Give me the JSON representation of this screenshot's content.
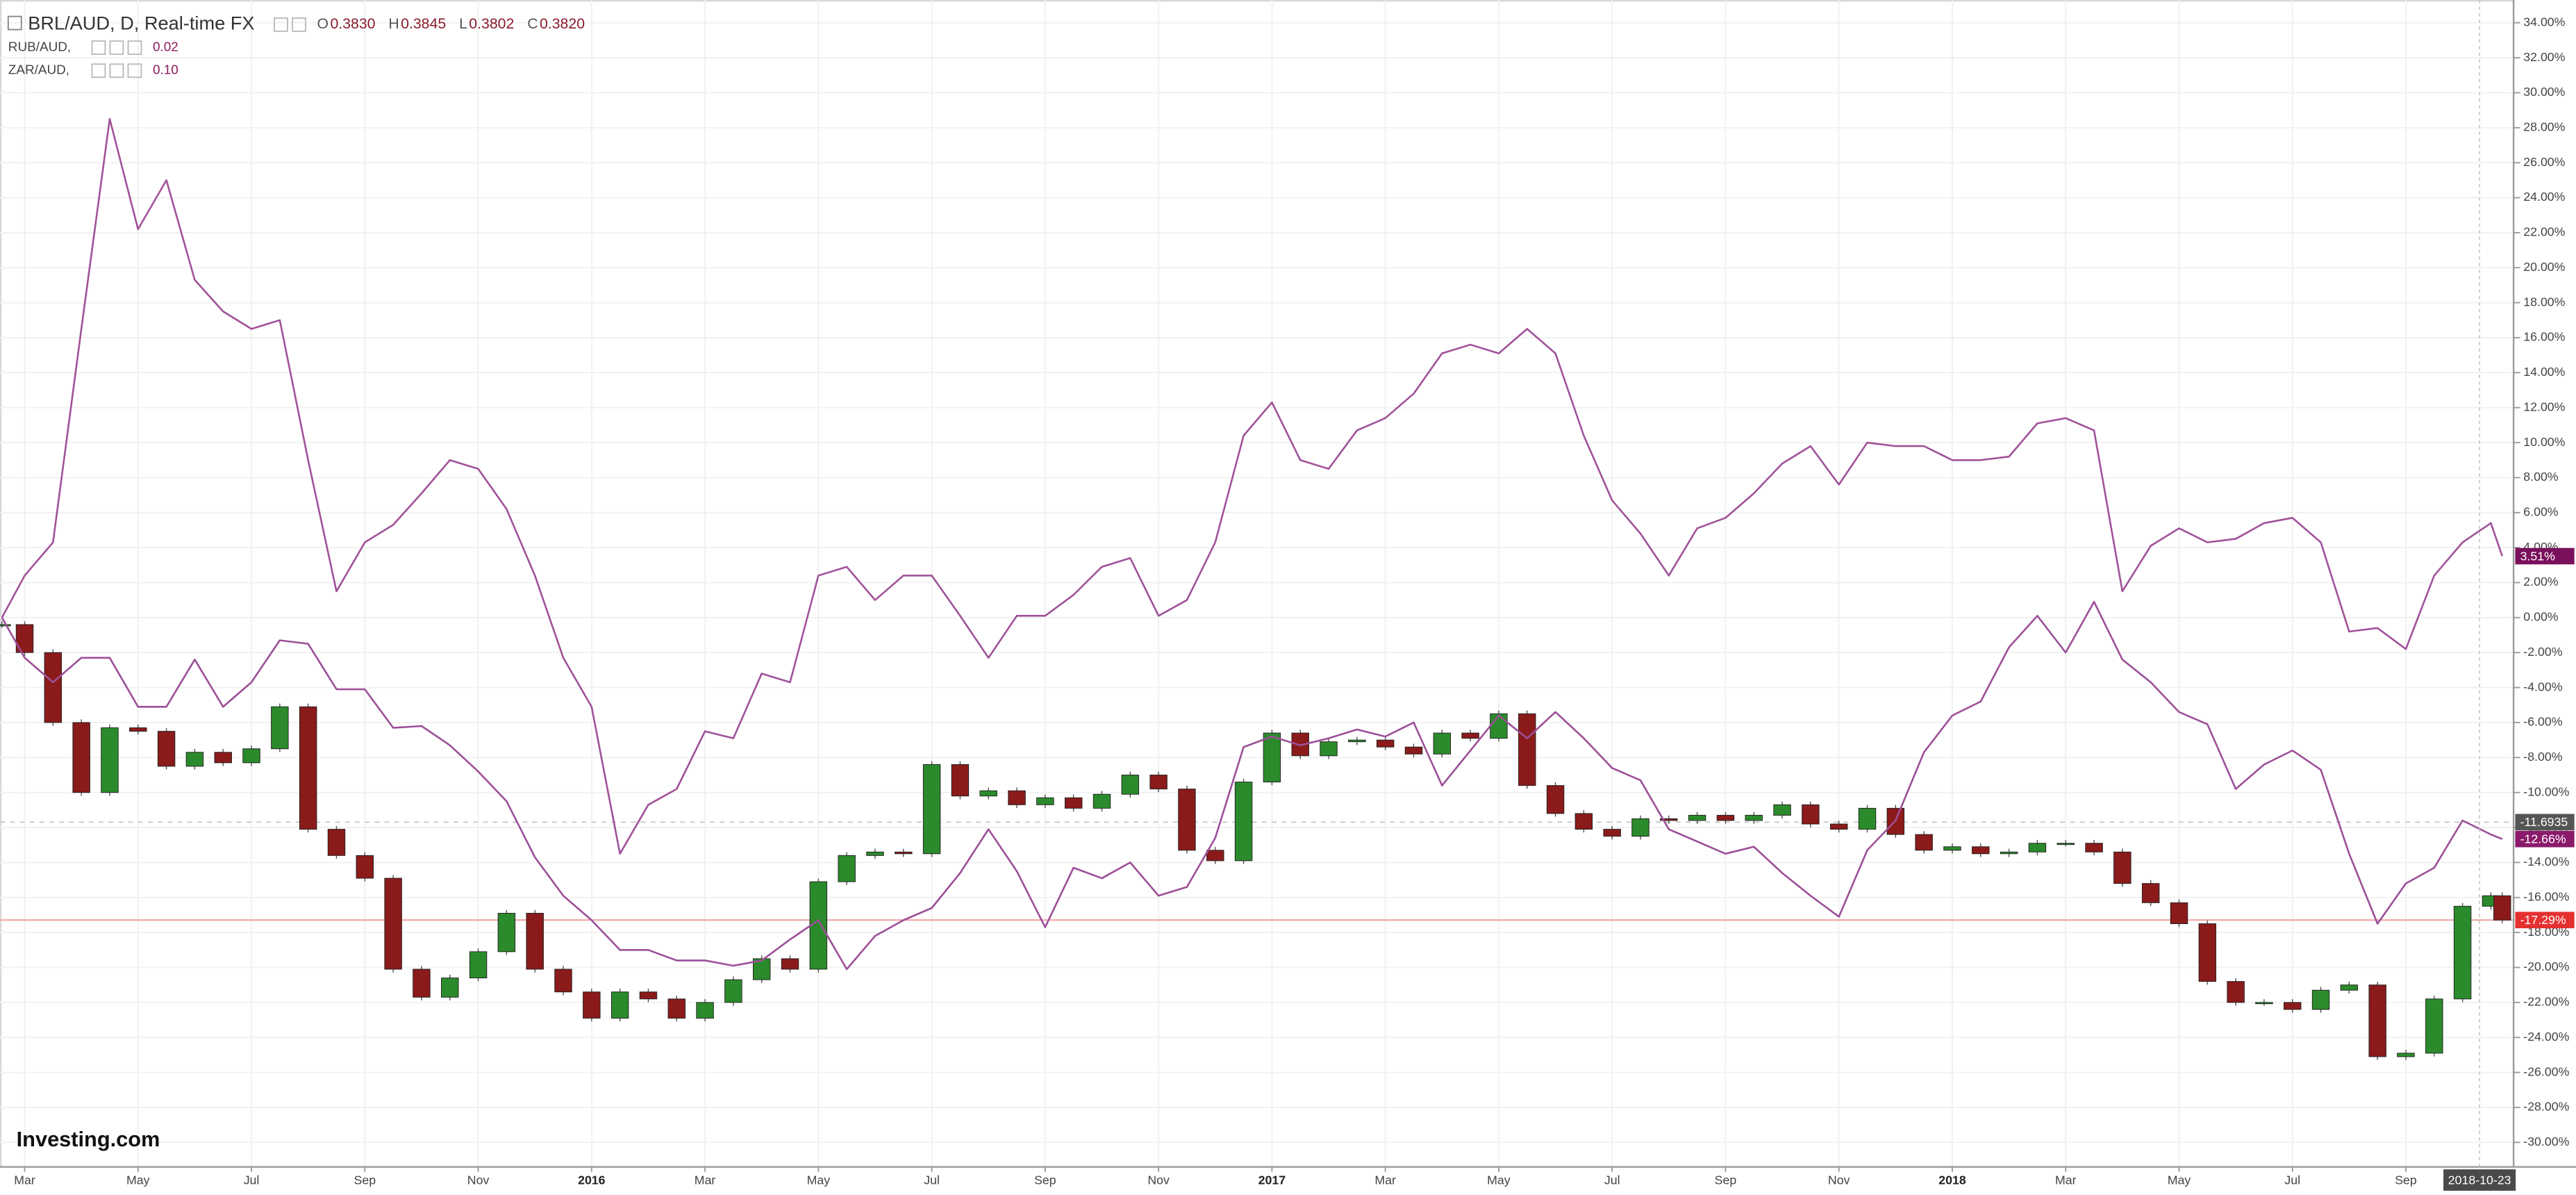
{
  "chart_data": {
    "type": "line",
    "title": "BRL/AUD, D, Real-time FX",
    "ohlc": [
      {
        "key": "O",
        "value": "0.3830"
      },
      {
        "key": "H",
        "value": "0.3845"
      },
      {
        "key": "L",
        "value": "0.3802"
      },
      {
        "key": "C",
        "value": "0.3820"
      }
    ],
    "source": "Investing.com",
    "grid": true,
    "xlim": [
      -0.435,
      43.9
    ],
    "ylim": [
      -31.4,
      35.3
    ],
    "xticks": [
      {
        "value": 0,
        "label": "Mar"
      },
      {
        "value": 2,
        "label": "May"
      },
      {
        "value": 4,
        "label": "Jul"
      },
      {
        "value": 6,
        "label": "Sep"
      },
      {
        "value": 8,
        "label": "Nov"
      },
      {
        "value": 10,
        "label": "2016"
      },
      {
        "value": 12,
        "label": "Mar"
      },
      {
        "value": 14,
        "label": "May"
      },
      {
        "value": 16,
        "label": "Jul"
      },
      {
        "value": 18,
        "label": "Sep"
      },
      {
        "value": 20,
        "label": "Nov"
      },
      {
        "value": 22,
        "label": "2017"
      },
      {
        "value": 24,
        "label": "Mar"
      },
      {
        "value": 26,
        "label": "May"
      },
      {
        "value": 28,
        "label": "Jul"
      },
      {
        "value": 30,
        "label": "Sep"
      },
      {
        "value": 32,
        "label": "Nov"
      },
      {
        "value": 34,
        "label": "2018"
      },
      {
        "value": 36,
        "label": "Mar"
      },
      {
        "value": 38,
        "label": "May"
      },
      {
        "value": 40,
        "label": "Jul"
      },
      {
        "value": 42,
        "label": "Sep"
      }
    ],
    "x_cursor": {
      "value": 43.3,
      "label": "2018-10-23"
    },
    "yticks": [
      {
        "value": 34,
        "label": "34.00%"
      },
      {
        "value": 32,
        "label": "32.00%"
      },
      {
        "value": 30,
        "label": "30.00%"
      },
      {
        "value": 28,
        "label": "28.00%"
      },
      {
        "value": 26,
        "label": "26.00%"
      },
      {
        "value": 24,
        "label": "24.00%"
      },
      {
        "value": 22,
        "label": "22.00%"
      },
      {
        "value": 20,
        "label": "20.00%"
      },
      {
        "value": 18,
        "label": "18.00%"
      },
      {
        "value": 16,
        "label": "16.00%"
      },
      {
        "value": 14,
        "label": "14.00%"
      },
      {
        "value": 12,
        "label": "12.00%"
      },
      {
        "value": 10,
        "label": "10.00%"
      },
      {
        "value": 8,
        "label": "8.00%"
      },
      {
        "value": 6,
        "label": "6.00%"
      },
      {
        "value": 4,
        "label": "4.00%"
      },
      {
        "value": 2,
        "label": "2.00%"
      },
      {
        "value": 0,
        "label": "0.00%"
      },
      {
        "value": -2,
        "label": "-2.00%"
      },
      {
        "value": -4,
        "label": "-4.00%"
      },
      {
        "value": -6,
        "label": "-6.00%"
      },
      {
        "value": -8,
        "label": "-8.00%"
      },
      {
        "value": -10,
        "label": "-10.00%"
      },
      {
        "value": -12,
        "label": "-12.00%"
      },
      {
        "value": -14,
        "label": "-14.00%"
      },
      {
        "value": -16,
        "label": "-16.00%"
      },
      {
        "value": -18,
        "label": "-18.00%"
      },
      {
        "value": -20,
        "label": "-20.00%"
      },
      {
        "value": -22,
        "label": "-22.00%"
      },
      {
        "value": -24,
        "label": "-24.00%"
      },
      {
        "value": -26,
        "label": "-26.00%"
      },
      {
        "value": -28,
        "label": "-28.00%"
      },
      {
        "value": -30,
        "label": "-30.00%"
      }
    ],
    "x": [
      -0.4,
      0,
      0.5,
      1,
      1.5,
      2,
      2.5,
      3,
      3.5,
      4,
      4.5,
      5,
      5.5,
      6,
      6.5,
      7,
      7.5,
      8,
      8.5,
      9,
      9.5,
      10,
      10.5,
      11,
      11.5,
      12,
      12.5,
      13,
      13.5,
      14,
      14.5,
      15,
      15.5,
      16,
      16.5,
      17,
      17.5,
      18,
      18.5,
      19,
      19.5,
      20,
      20.5,
      21,
      21.5,
      22,
      22.5,
      23,
      23.5,
      24,
      24.5,
      25,
      25.5,
      26,
      26.5,
      27,
      27.5,
      28,
      28.5,
      29,
      29.5,
      30,
      30.5,
      31,
      31.5,
      32,
      32.5,
      33,
      33.5,
      34,
      34.5,
      35,
      35.5,
      36,
      36.5,
      37,
      37.5,
      38,
      38.5,
      39,
      39.5,
      40,
      40.5,
      41,
      41.5,
      42,
      42.5,
      43,
      43.5,
      43.7
    ],
    "series": [
      {
        "name": "BRL/AUD",
        "style": "candle",
        "color": "#2b8a2b",
        "down_color": "#8b1a1a",
        "values": [
          -0.4,
          -2.0,
          -6.0,
          -10.0,
          -6.3,
          -6.5,
          -8.5,
          -7.7,
          -8.3,
          -7.5,
          -5.1,
          -12.1,
          -13.6,
          -14.9,
          -20.1,
          -21.7,
          -20.6,
          -19.1,
          -16.9,
          -20.1,
          -21.4,
          -22.9,
          -21.4,
          -21.8,
          -22.9,
          -22.0,
          -20.7,
          -19.5,
          -20.1,
          -15.1,
          -13.6,
          -13.4,
          -13.5,
          -8.4,
          -10.2,
          -9.9,
          -10.7,
          -10.3,
          -10.9,
          -10.1,
          -9.0,
          -9.8,
          -13.3,
          -13.9,
          -9.4,
          -6.6,
          -7.9,
          -7.1,
          -7.0,
          -7.4,
          -7.8,
          -6.6,
          -6.9,
          -5.5,
          -9.6,
          -11.2,
          -12.1,
          -12.5,
          -11.5,
          -11.6,
          -11.3,
          -11.6,
          -11.3,
          -10.7,
          -11.8,
          -12.1,
          -10.9,
          -12.4,
          -13.3,
          -13.1,
          -13.5,
          -13.4,
          -12.9,
          -12.9,
          -13.4,
          -15.2,
          -16.3,
          -17.5,
          -20.8,
          -22.0,
          -22.0,
          -22.4,
          -21.3,
          -21.0,
          -25.1,
          -24.9,
          -21.8,
          -16.5,
          -15.9,
          -17.29
        ]
      },
      {
        "name": "RUB/AUD,",
        "legend_value": "0.02",
        "color": "#a0529a",
        "values": [
          0.0,
          2.4,
          4.3,
          16.5,
          28.5,
          22.2,
          25.0,
          19.3,
          17.5,
          16.5,
          17.0,
          9.0,
          1.5,
          4.3,
          5.3,
          7.1,
          9.0,
          8.5,
          6.2,
          2.4,
          -2.3,
          -5.1,
          -13.5,
          -10.7,
          -9.8,
          -6.5,
          -6.9,
          -3.2,
          -3.7,
          2.4,
          2.9,
          1.0,
          2.4,
          2.4,
          0.1,
          -2.3,
          0.1,
          0.1,
          1.3,
          2.9,
          3.4,
          0.1,
          1.0,
          4.3,
          10.4,
          12.3,
          9.0,
          8.5,
          10.7,
          11.4,
          12.8,
          15.1,
          15.6,
          15.1,
          16.5,
          15.1,
          10.4,
          6.7,
          4.8,
          2.4,
          5.1,
          5.7,
          7.1,
          8.8,
          9.8,
          7.6,
          10.0,
          9.8,
          9.8,
          9.0,
          9.0,
          9.2,
          11.1,
          11.4,
          10.7,
          1.5,
          4.1,
          5.1,
          4.3,
          4.5,
          5.4,
          5.7,
          4.3,
          -0.8,
          -0.6,
          -1.8,
          2.4,
          4.3,
          5.4,
          3.51
        ]
      },
      {
        "name": "ZAR/AUD,",
        "legend_value": "0.10",
        "color": "#9c4f98",
        "values": [
          0.0,
          -2.3,
          -3.7,
          -2.3,
          -2.3,
          -5.1,
          -5.1,
          -2.4,
          -5.1,
          -3.7,
          -1.3,
          -1.5,
          -4.1,
          -4.1,
          -6.3,
          -6.2,
          -7.3,
          -8.8,
          -10.5,
          -13.7,
          -15.9,
          -17.3,
          -19.0,
          -19.0,
          -19.6,
          -19.6,
          -19.9,
          -19.6,
          -18.4,
          -17.3,
          -20.1,
          -18.2,
          -17.3,
          -16.6,
          -14.6,
          -12.1,
          -14.5,
          -17.7,
          -14.3,
          -14.9,
          -14.0,
          -15.9,
          -15.4,
          -12.6,
          -7.4,
          -6.8,
          -7.3,
          -6.9,
          -6.4,
          -6.8,
          -6.0,
          -9.6,
          -7.6,
          -5.6,
          -6.9,
          -5.4,
          -6.9,
          -8.6,
          -9.3,
          -12.1,
          -12.8,
          -13.5,
          -13.1,
          -14.6,
          -15.9,
          -17.1,
          -13.3,
          -11.6,
          -7.7,
          -5.6,
          -4.8,
          -1.7,
          0.1,
          -2.0,
          0.9,
          -2.4,
          -3.7,
          -5.4,
          -6.1,
          -9.8,
          -8.4,
          -7.6,
          -8.7,
          -13.5,
          -17.5,
          -15.2,
          -14.3,
          -11.6,
          -12.4,
          -12.66
        ]
      }
    ],
    "price_labels": [
      {
        "value": 3.51,
        "label": "3.51%",
        "color": "#7a0f5c"
      },
      {
        "value": -11.6935,
        "label": "-11.6935",
        "color": "#555555",
        "line": "dashed"
      },
      {
        "value": -12.66,
        "label": "-12.66%",
        "color": "#8b1a6b"
      },
      {
        "value": -17.29,
        "label": "-17.29%",
        "color": "#e53030",
        "line": "solid"
      }
    ]
  }
}
